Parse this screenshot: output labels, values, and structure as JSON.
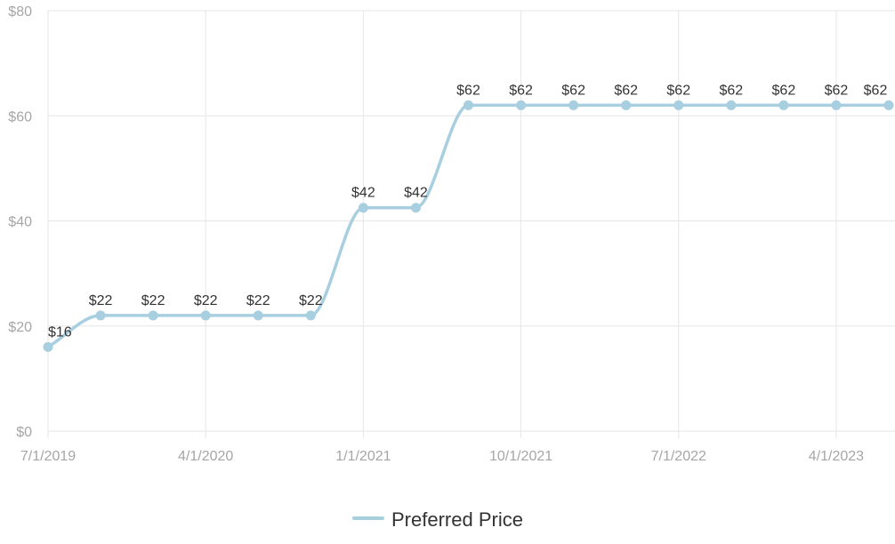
{
  "chart_data": {
    "type": "line",
    "title": "",
    "xlabel": "",
    "ylabel": "",
    "ylim": [
      0,
      80
    ],
    "yticks": [
      0,
      20,
      40,
      60,
      80
    ],
    "ytick_labels": [
      "$0",
      "$20",
      "$40",
      "$60",
      "$80"
    ],
    "xlim": [
      "2019-07-01",
      "2023-07-01"
    ],
    "xticks": [
      "2019-07-01",
      "2020-04-01",
      "2021-01-01",
      "2021-10-01",
      "2022-07-01",
      "2023-04-01"
    ],
    "xtick_labels": [
      "7/1/2019",
      "4/1/2020",
      "1/1/2021",
      "10/1/2021",
      "7/1/2022",
      "4/1/2023"
    ],
    "grid": true,
    "legend_position": "bottom-center",
    "colors": {
      "series": "#a8cfe0",
      "grid": "#e6e6e6",
      "tick": "#a6a6a6",
      "label": "#333333"
    },
    "series": [
      {
        "name": "Preferred Price",
        "x": [
          "2019-07-01",
          "2019-10-01",
          "2020-01-01",
          "2020-04-01",
          "2020-07-01",
          "2020-10-01",
          "2021-01-01",
          "2021-04-01",
          "2021-07-01",
          "2021-10-01",
          "2022-01-01",
          "2022-04-01",
          "2022-07-01",
          "2022-10-01",
          "2023-01-01",
          "2023-04-01",
          "2023-07-01"
        ],
        "y": [
          16,
          22,
          22,
          22,
          22,
          22,
          42.5,
          42.5,
          62,
          62,
          62,
          62,
          62,
          62,
          62,
          62,
          62
        ],
        "labels": [
          "$16",
          "$22",
          "$22",
          "$22",
          "$22",
          "$22",
          "$42",
          "$42",
          "$62",
          "$62",
          "$62",
          "$62",
          "$62",
          "$62",
          "$62",
          "$62",
          "$62"
        ]
      }
    ]
  }
}
